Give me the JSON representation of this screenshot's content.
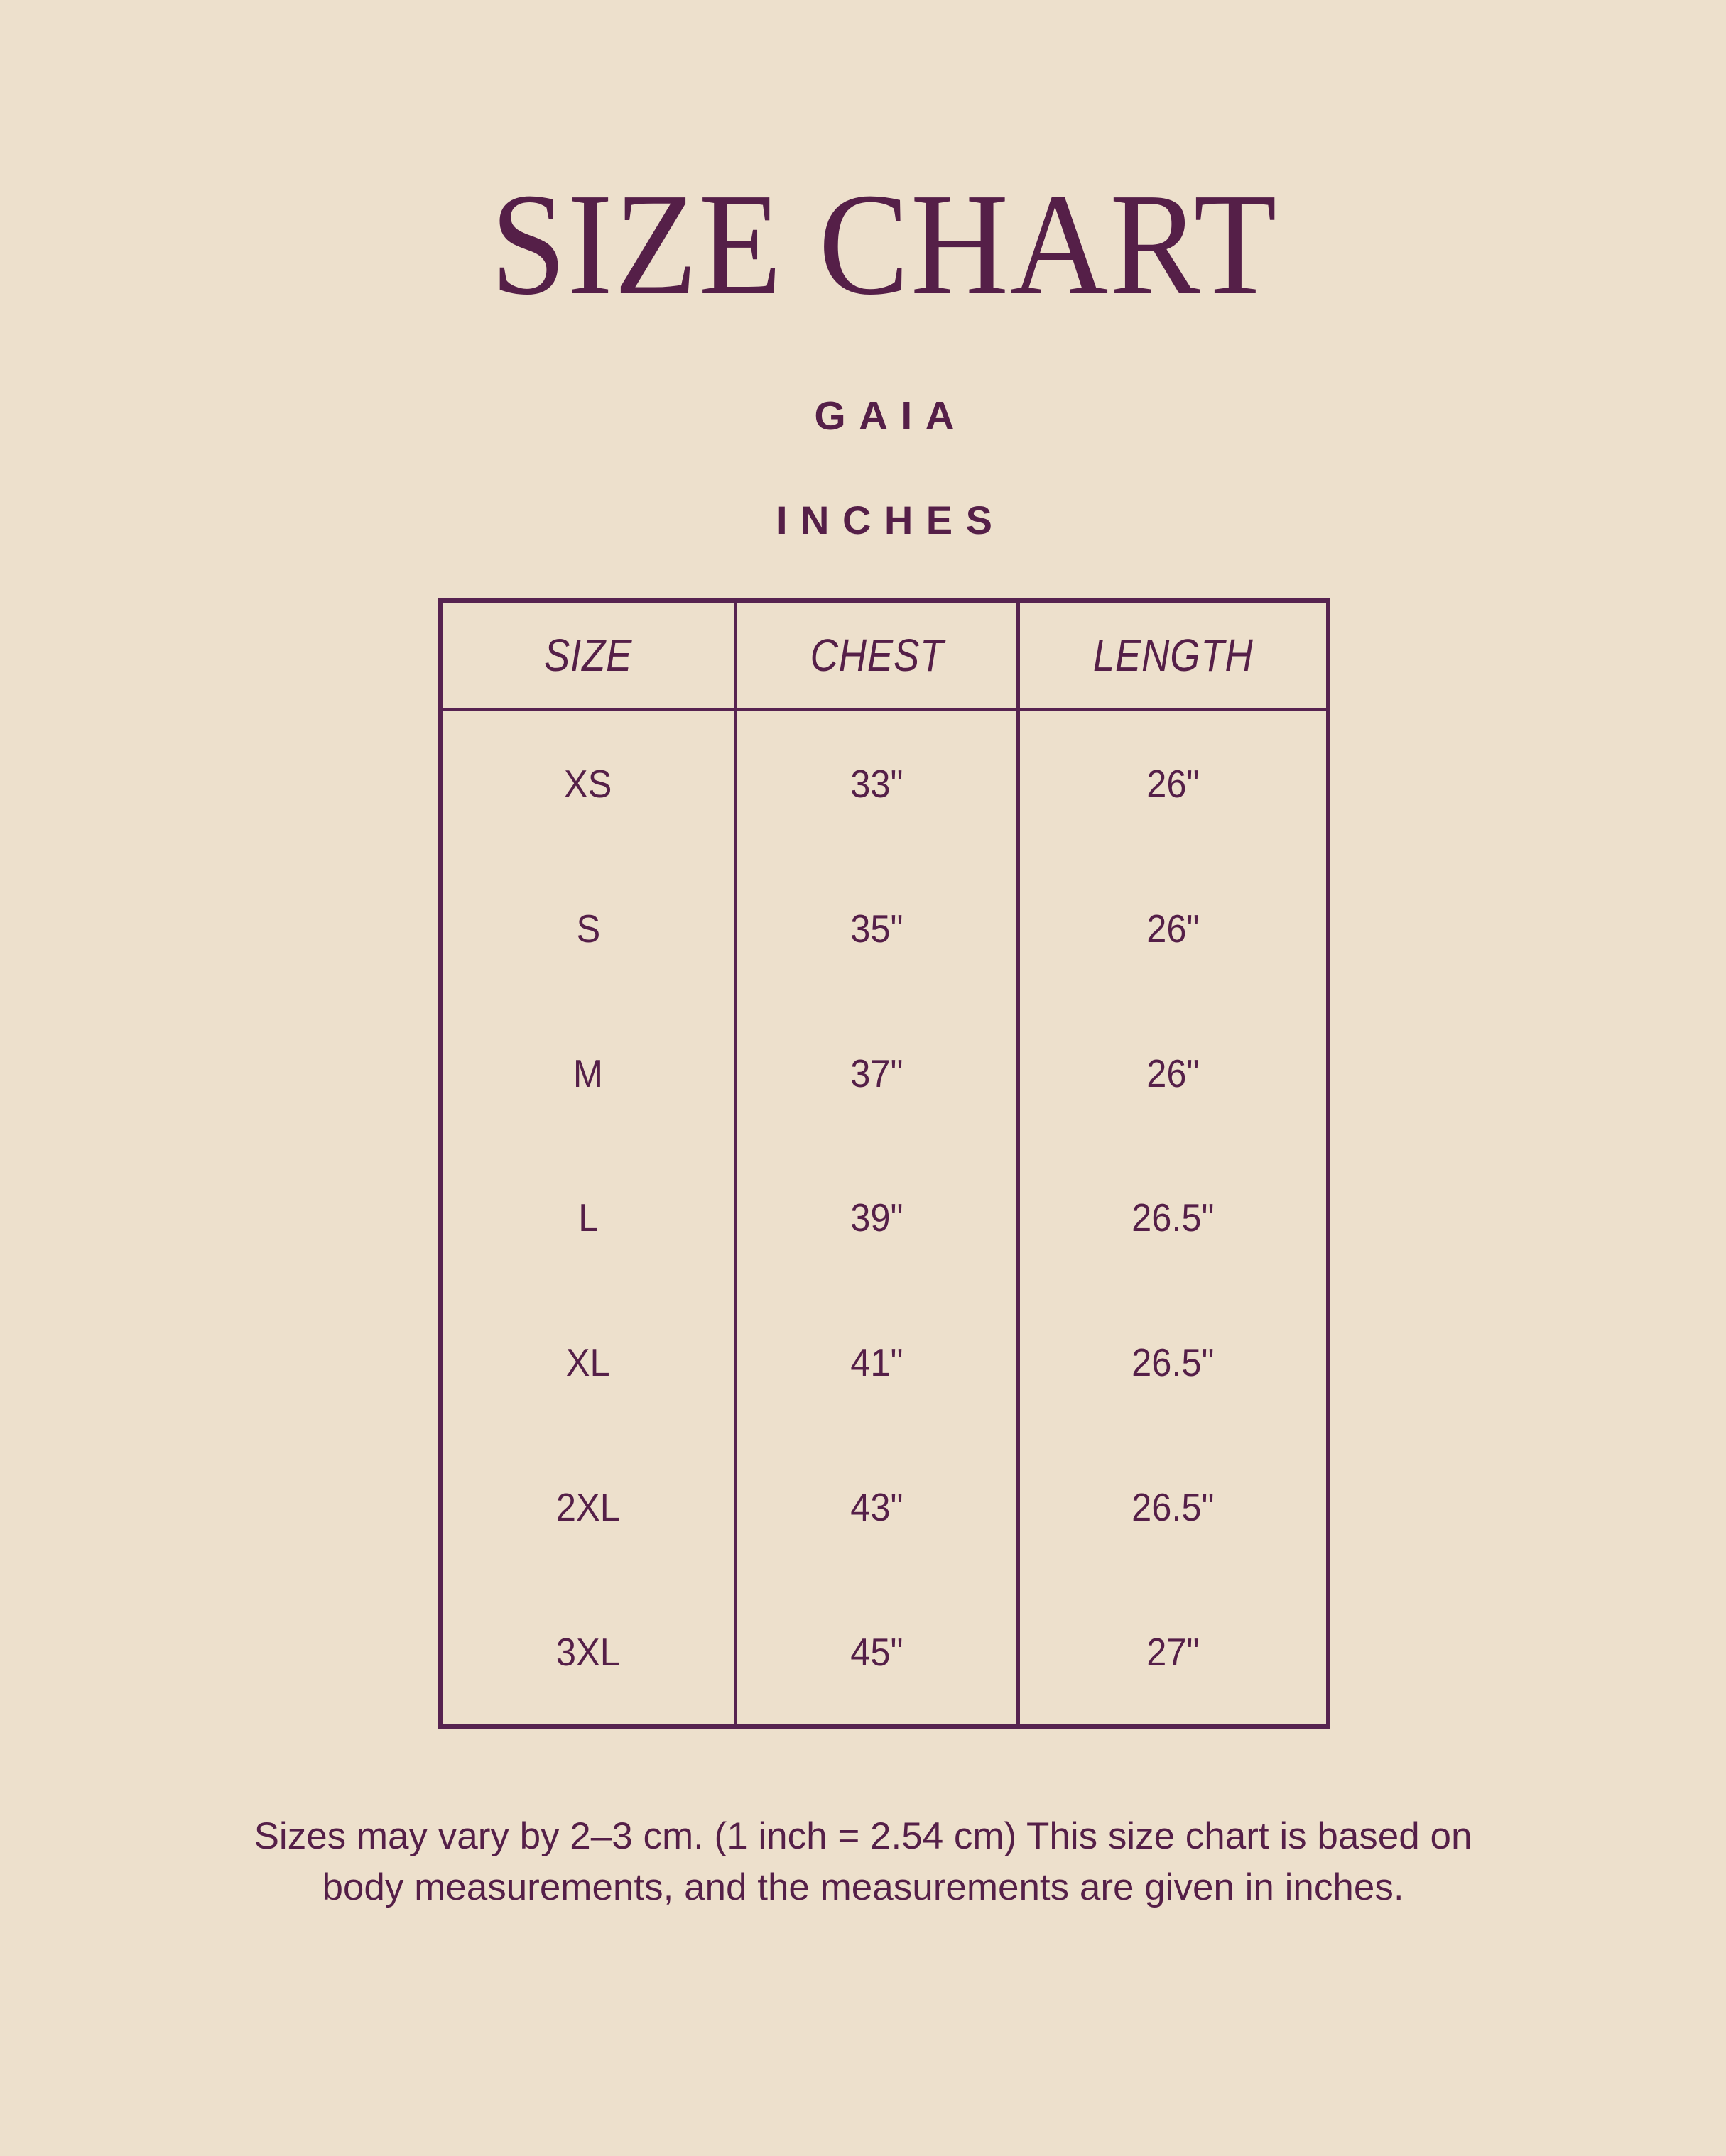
{
  "header": {
    "title": "SIZE CHART",
    "product": "GAIA",
    "units": "INCHES"
  },
  "table": {
    "columns": [
      "SIZE",
      "CHEST",
      "LENGTH"
    ],
    "rows": [
      {
        "size": "XS",
        "chest": "33\"",
        "length": "26\""
      },
      {
        "size": "S",
        "chest": "35\"",
        "length": "26\""
      },
      {
        "size": "M",
        "chest": "37\"",
        "length": "26\""
      },
      {
        "size": "L",
        "chest": "39\"",
        "length": "26.5\""
      },
      {
        "size": "XL",
        "chest": "41\"",
        "length": "26.5\""
      },
      {
        "size": "2XL",
        "chest": "43\"",
        "length": "26.5\""
      },
      {
        "size": "3XL",
        "chest": "45\"",
        "length": "27\""
      }
    ]
  },
  "footer": {
    "line1": "Sizes may vary by 2–3 cm. (1 inch = 2.54 cm) This size chart is based on",
    "line2": "body measurements, and the measurements are given in inches."
  },
  "theme": {
    "background": "#EDE0CC",
    "ink": "#551F48",
    "border": "#572350"
  }
}
